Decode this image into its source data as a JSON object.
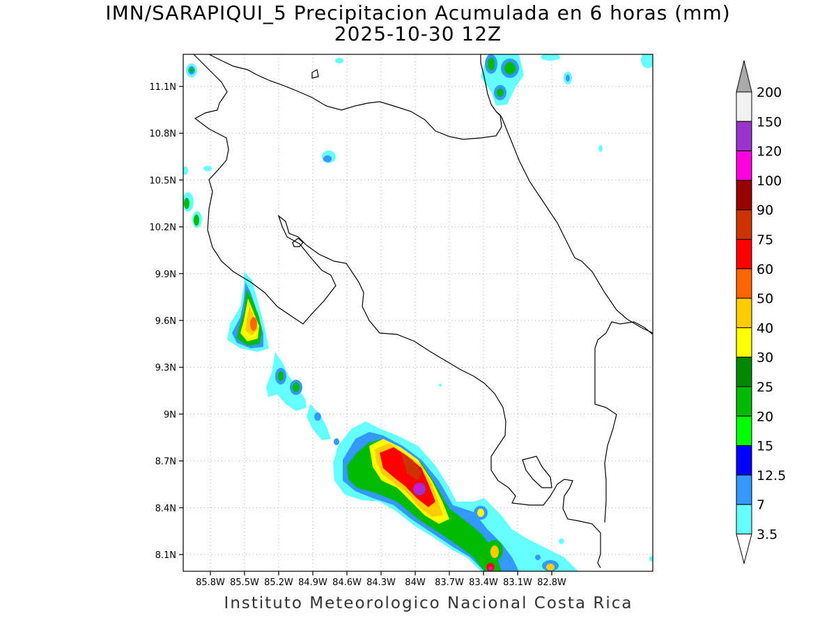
{
  "header": {
    "title": "IMN/SARAPIQUI_5 Precipitacion Acumulada en 6 horas (mm)",
    "datetime": "2025-10-30 12Z"
  },
  "map": {
    "lat_ticks": [
      "11.1N",
      "10.8N",
      "10.5N",
      "10.2N",
      "9.9N",
      "9.6N",
      "9.3N",
      "9N",
      "8.7N",
      "8.4N",
      "8.1N"
    ],
    "lon_ticks": [
      "85.8W",
      "85.5W",
      "85.2W",
      "84.9W",
      "84.6W",
      "84.3W",
      "84W",
      "83.7W",
      "83.4W",
      "83.1W",
      "82.8W"
    ]
  },
  "colorbar": {
    "labels": [
      "200",
      "150",
      "120",
      "100",
      "90",
      "75",
      "60",
      "50",
      "40",
      "30",
      "25",
      "20",
      "15",
      "12.5",
      "7",
      "3.5"
    ],
    "colors": [
      "#f2f2f2",
      "#9a33cc",
      "#ff00e0",
      "#990000",
      "#cc3300",
      "#ff0000",
      "#ff6600",
      "#ffcc00",
      "#ffff00",
      "#008800",
      "#00bb00",
      "#00ff00",
      "#0000ff",
      "#3399ff",
      "#66ffff",
      "#ffffff"
    ]
  },
  "footer": {
    "credit": "Instituto Meteorologico Nacional Costa Rica"
  }
}
